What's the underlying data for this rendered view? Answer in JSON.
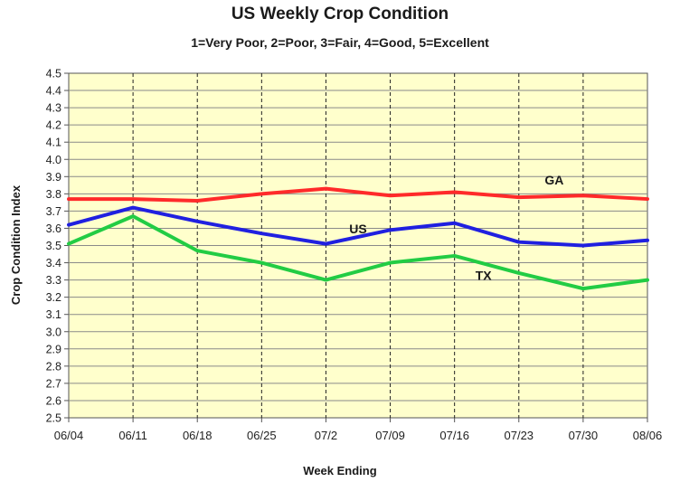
{
  "chart_data": {
    "type": "line",
    "title": "US Weekly Crop Condition",
    "subtitle": "1=Very Poor, 2=Poor, 3=Fair, 4=Good, 5=Excellent",
    "xlabel": "Week Ending",
    "ylabel": "Crop Condition Index",
    "ylim": [
      2.5,
      4.5
    ],
    "ytick_step": 0.1,
    "yticks": [
      "2.5",
      "2.6",
      "2.7",
      "2.8",
      "2.9",
      "3.0",
      "3.1",
      "3.2",
      "3.3",
      "3.4",
      "3.5",
      "3.6",
      "3.7",
      "3.8",
      "3.9",
      "4.0",
      "4.1",
      "4.2",
      "4.3",
      "4.4",
      "4.5"
    ],
    "categories": [
      "06/04",
      "06/11",
      "06/18",
      "06/25",
      "07/2",
      "07/09",
      "07/16",
      "07/23",
      "07/30",
      "08/06"
    ],
    "grid": {
      "vertical": "dashed",
      "horizontal": "solid"
    },
    "plot_background": "#ffffcc",
    "legend": "inline labels",
    "series": [
      {
        "name": "GA",
        "color": "#ff2a2a",
        "values": [
          3.77,
          3.77,
          3.76,
          3.8,
          3.83,
          3.79,
          3.81,
          3.78,
          3.79,
          3.77
        ]
      },
      {
        "name": "US",
        "color": "#2020e0",
        "values": [
          3.62,
          3.72,
          3.64,
          3.57,
          3.51,
          3.59,
          3.63,
          3.52,
          3.5,
          3.53
        ]
      },
      {
        "name": "TX",
        "color": "#22cc44",
        "values": [
          3.51,
          3.67,
          3.47,
          3.4,
          3.3,
          3.4,
          3.44,
          3.34,
          3.25,
          3.3
        ]
      }
    ]
  }
}
